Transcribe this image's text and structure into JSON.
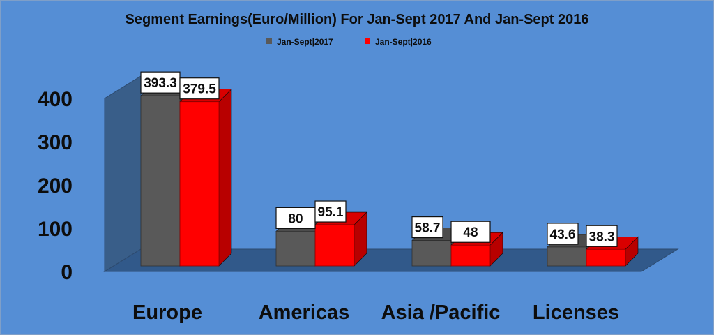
{
  "chart_data": {
    "type": "bar",
    "title": "Segment Earnings(Euro/Million)  For Jan-Sept 2017 And Jan-Sept 2016",
    "categories": [
      "Europe",
      "Americas",
      "Asia /Pacific",
      "Licenses"
    ],
    "series": [
      {
        "name": "Jan-Sept|2017",
        "values": [
          393.3,
          80,
          58.7,
          43.6
        ],
        "value_labels": [
          "393.3",
          "80",
          "58.7",
          "43.6"
        ],
        "color": "#595959"
      },
      {
        "name": "Jan-Sept|2016",
        "values": [
          379.5,
          95.1,
          48,
          38.3
        ],
        "value_labels": [
          "379.5",
          "95.1",
          "48",
          "38.3"
        ],
        "color": "#ff0000"
      }
    ],
    "ylim": [
      0,
      400
    ],
    "yticks": [
      0,
      100,
      200,
      300,
      400
    ],
    "ytick_labels": [
      "0",
      "100",
      "200",
      "300",
      "400"
    ],
    "xlabel": "",
    "ylabel": "",
    "legend_position": "top-center",
    "grid": false,
    "style": "3d-clustered-column"
  },
  "colors": {
    "background": "#558ed5",
    "wall": "#395e89",
    "floor": "#31598a",
    "outline": "#0a0a0a"
  }
}
